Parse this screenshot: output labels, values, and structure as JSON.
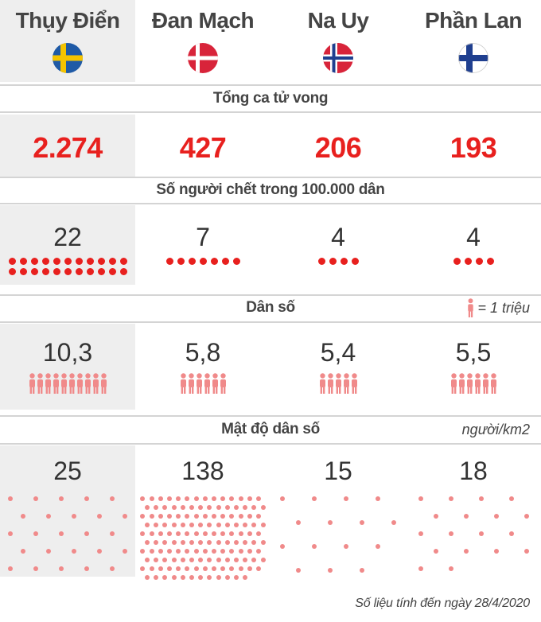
{
  "countries": [
    {
      "name": "Thụy Điển",
      "flag": "sweden-flag"
    },
    {
      "name": "Đan Mạch",
      "flag": "denmark-flag"
    },
    {
      "name": "Na Uy",
      "flag": "norway-flag"
    },
    {
      "name": "Phần Lan",
      "flag": "finland-flag"
    }
  ],
  "sections": {
    "total_deaths": {
      "title": "Tổng ca tử vong",
      "values": [
        "2.274",
        "427",
        "206",
        "193"
      ]
    },
    "deaths_per_100k": {
      "title": "Số người chết trong 100.000 dân",
      "values": [
        "22",
        "7",
        "4",
        "4"
      ],
      "dot_counts": [
        22,
        7,
        4,
        4
      ]
    },
    "population": {
      "title": "Dân số",
      "legend": "= 1 triệu",
      "values": [
        "10,3",
        "5,8",
        "5,4",
        "5,5"
      ],
      "icon_counts": [
        10,
        6,
        5,
        6
      ]
    },
    "density": {
      "title": "Mật độ dân số",
      "unit": "người/km2",
      "values": [
        "25",
        "138",
        "15",
        "18"
      ],
      "dot_counts": [
        25,
        138,
        15,
        18
      ]
    }
  },
  "footer": "Số liệu tính đến ngày 28/4/2020",
  "colors": {
    "red": "#e8201e",
    "pink": "#f08a8a",
    "highlight_bg": "#eeeeee"
  }
}
